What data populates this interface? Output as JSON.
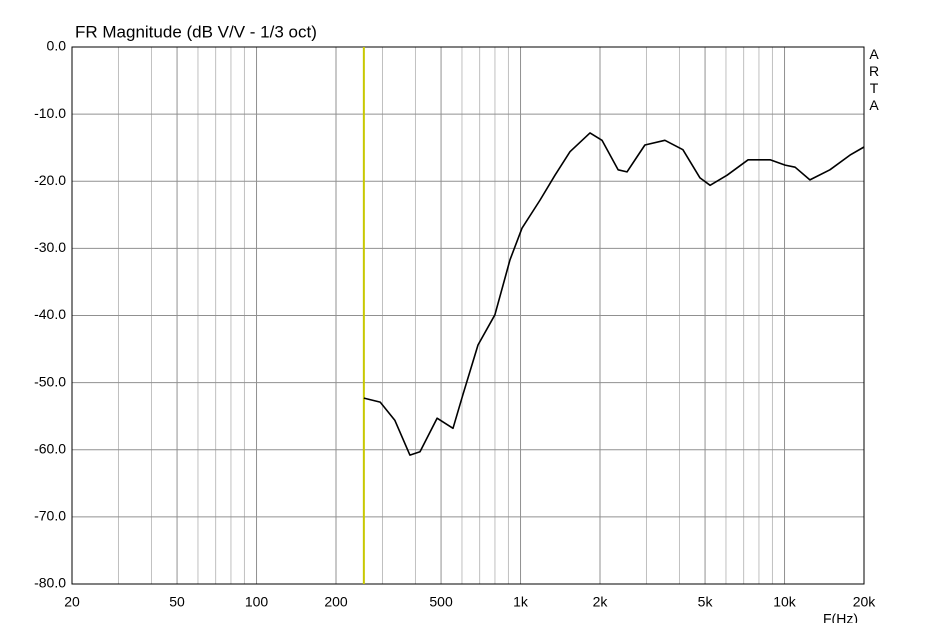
{
  "chart_data": {
    "type": "line",
    "title": "FR Magnitude (dB V/V - 1/3 oct)",
    "xlabel": "F(Hz)",
    "watermark": "ARTA",
    "xscale": "log",
    "grid": true,
    "xlim": [
      20,
      20000
    ],
    "ylim": [
      -80,
      0
    ],
    "xticks": [
      20,
      50,
      100,
      200,
      500,
      {
        "value": 1000,
        "label": "1k"
      },
      {
        "value": 2000,
        "label": "2k"
      },
      {
        "value": 5000,
        "label": "5k"
      },
      {
        "value": 10000,
        "label": "10k"
      },
      {
        "value": 20000,
        "label": "20k"
      }
    ],
    "xminor": [
      30,
      40,
      60,
      70,
      80,
      90,
      300,
      400,
      600,
      700,
      800,
      900,
      3000,
      4000,
      6000,
      7000,
      8000,
      9000
    ],
    "yticks": [
      {
        "value": 0,
        "label": "0.0"
      },
      {
        "value": -10,
        "label": "-10.0"
      },
      {
        "value": -20,
        "label": "-20.0"
      },
      {
        "value": -30,
        "label": "-30.0"
      },
      {
        "value": -40,
        "label": "-40.0"
      },
      {
        "value": -50,
        "label": "-50.0"
      },
      {
        "value": -60,
        "label": "-60.0"
      },
      {
        "value": -70,
        "label": "-70.0"
      },
      {
        "value": -80,
        "label": "-80.0"
      }
    ],
    "cursor": 255,
    "cursor_color": "#c8c800",
    "series": [
      {
        "name": "FR",
        "color": "#000000",
        "x": [
          255,
          294,
          334,
          381,
          416,
          483,
          555,
          605,
          690,
          800,
          912,
          1013,
          1186,
          1351,
          1539,
          1833,
          2036,
          2341,
          2530,
          2960,
          3524,
          4123,
          4784,
          5224,
          6058,
          7278,
          8815,
          10050,
          10970,
          12480,
          14860,
          17700,
          20000
        ],
        "values": [
          -52.3,
          -52.9,
          -55.6,
          -60.8,
          -60.3,
          -55.3,
          -56.8,
          -51.8,
          -44.4,
          -39.9,
          -31.7,
          -27.0,
          -22.8,
          -19.1,
          -15.6,
          -12.8,
          -13.9,
          -18.3,
          -18.6,
          -14.6,
          -13.9,
          -15.3,
          -19.5,
          -20.6,
          -19.1,
          -16.8,
          -16.8,
          -17.6,
          -17.9,
          -19.8,
          -18.3,
          -16.1,
          -14.9
        ]
      }
    ]
  }
}
